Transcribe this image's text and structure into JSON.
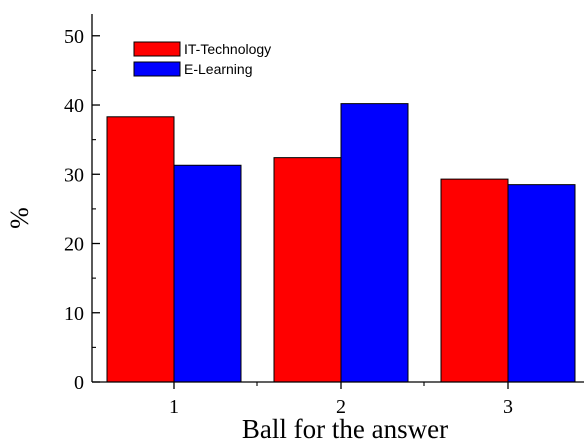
{
  "chart_data": {
    "type": "bar",
    "categories": [
      "1",
      "2",
      "3"
    ],
    "series": [
      {
        "name": "IT-Technology",
        "values": [
          38.3,
          32.4,
          29.3
        ],
        "color": "#ff0000"
      },
      {
        "name": "E-Learning",
        "values": [
          31.3,
          40.2,
          28.5
        ],
        "color": "#0000ff"
      }
    ],
    "xlabel": "Ball for the answer",
    "ylabel": "%",
    "ylim": [
      0,
      53
    ],
    "yticks": [
      "0",
      "10",
      "20",
      "30",
      "40",
      "50"
    ],
    "grid": false,
    "legend_position": "top-left"
  }
}
